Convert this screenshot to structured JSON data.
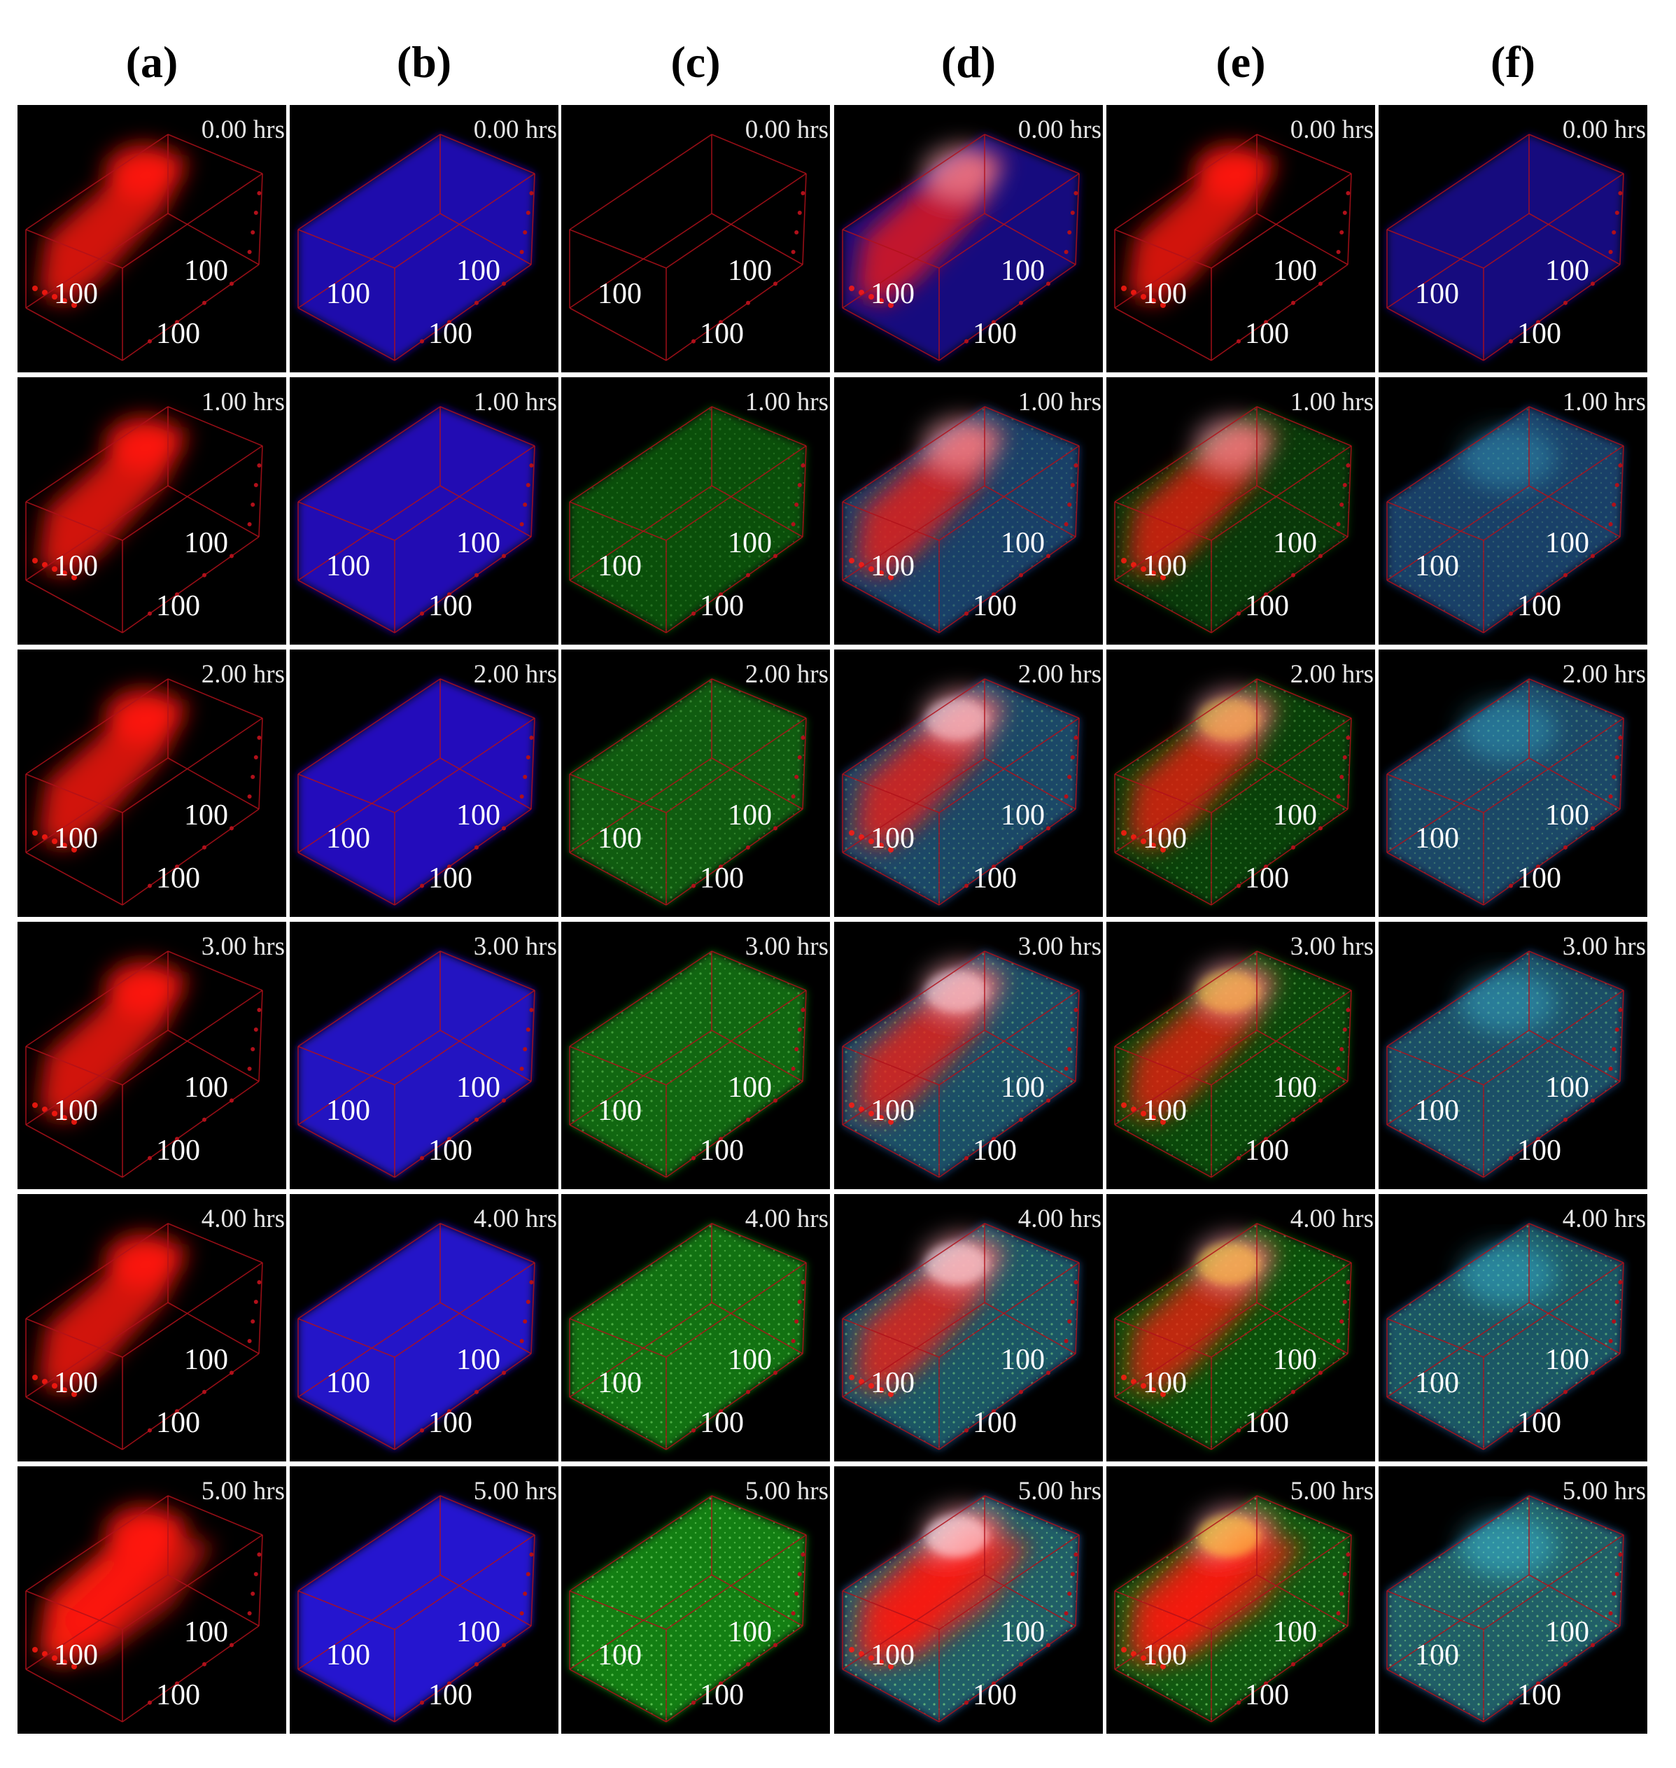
{
  "columns": [
    {
      "label": "(a)",
      "channels": [
        "red"
      ]
    },
    {
      "label": "(b)",
      "channels": [
        "blue"
      ]
    },
    {
      "label": "(c)",
      "channels": [
        "green"
      ]
    },
    {
      "label": "(d)",
      "channels": [
        "red",
        "blue",
        "green"
      ]
    },
    {
      "label": "(e)",
      "channels": [
        "red",
        "green"
      ]
    },
    {
      "label": "(f)",
      "channels": [
        "blue",
        "green"
      ]
    }
  ],
  "rows": [
    {
      "time": "0.00 hrs",
      "green_level": 0.0
    },
    {
      "time": "1.00 hrs",
      "green_level": 0.35
    },
    {
      "time": "2.00 hrs",
      "green_level": 0.5
    },
    {
      "time": "3.00 hrs",
      "green_level": 0.62
    },
    {
      "time": "4.00 hrs",
      "green_level": 0.75
    },
    {
      "time": "5.00 hrs",
      "green_level": 0.9
    }
  ],
  "axis_labels": {
    "left": "100",
    "mid": "100",
    "bottom": "100"
  },
  "colors": {
    "red": "#ff1a10",
    "blue": "#2a14e6",
    "green": "#1fc21f",
    "cube_edge": "#b0101a",
    "panel_background": "#000000",
    "time_text": "#e6e6e6",
    "axis_text": "#ffffff"
  }
}
